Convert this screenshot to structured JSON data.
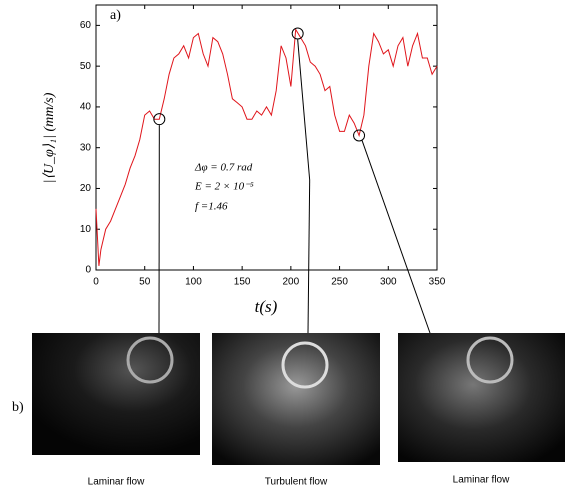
{
  "chart_data": {
    "type": "line",
    "panel_a": "a)",
    "panel_b": "b)",
    "xlabel": "t(s)",
    "ylabel": "|⟨U_φ⟩₁| (mm/s)",
    "annotations": [
      "Δφ = 0.7 rad",
      "E = 2 × 10⁻⁵",
      "f =1.46"
    ],
    "captions": [
      "Laminar flow",
      "Turbulent flow",
      "Laminar flow"
    ],
    "xlim": [
      0,
      350
    ],
    "ylim": [
      0,
      65
    ],
    "xticks": [
      0,
      50,
      100,
      150,
      200,
      250,
      300,
      350
    ],
    "yticks": [
      0,
      10,
      20,
      30,
      40,
      50,
      60
    ],
    "x": [
      0,
      3,
      5,
      10,
      15,
      20,
      25,
      30,
      35,
      40,
      45,
      50,
      55,
      60,
      65,
      70,
      75,
      80,
      85,
      90,
      95,
      100,
      105,
      110,
      115,
      120,
      125,
      130,
      135,
      140,
      145,
      150,
      155,
      160,
      165,
      170,
      175,
      180,
      185,
      190,
      195,
      200,
      205,
      210,
      215,
      220,
      225,
      230,
      235,
      240,
      245,
      250,
      255,
      260,
      265,
      270,
      275,
      280,
      285,
      290,
      295,
      300,
      305,
      310,
      315,
      320,
      325,
      330,
      335,
      340,
      345,
      350
    ],
    "series": [
      {
        "color": "#e0151b",
        "values": [
          15,
          1,
          5,
          10,
          12,
          15,
          18,
          21,
          25,
          28,
          32,
          38,
          39,
          37,
          37,
          42,
          48,
          52,
          53,
          55,
          52,
          57,
          58,
          53,
          50,
          57,
          56,
          53,
          48,
          42,
          41,
          40,
          37,
          37,
          39,
          38,
          40,
          38,
          44,
          55,
          52,
          45,
          59,
          57,
          55,
          51,
          50,
          48,
          44,
          45,
          38,
          34,
          34,
          38,
          36,
          33,
          38,
          50,
          58,
          56,
          53,
          54,
          50,
          55,
          57,
          50,
          55,
          58,
          52,
          52,
          48,
          50
        ]
      }
    ],
    "highlights": {
      "x": [
        65,
        207,
        270
      ],
      "y": [
        37,
        58,
        33
      ]
    }
  }
}
